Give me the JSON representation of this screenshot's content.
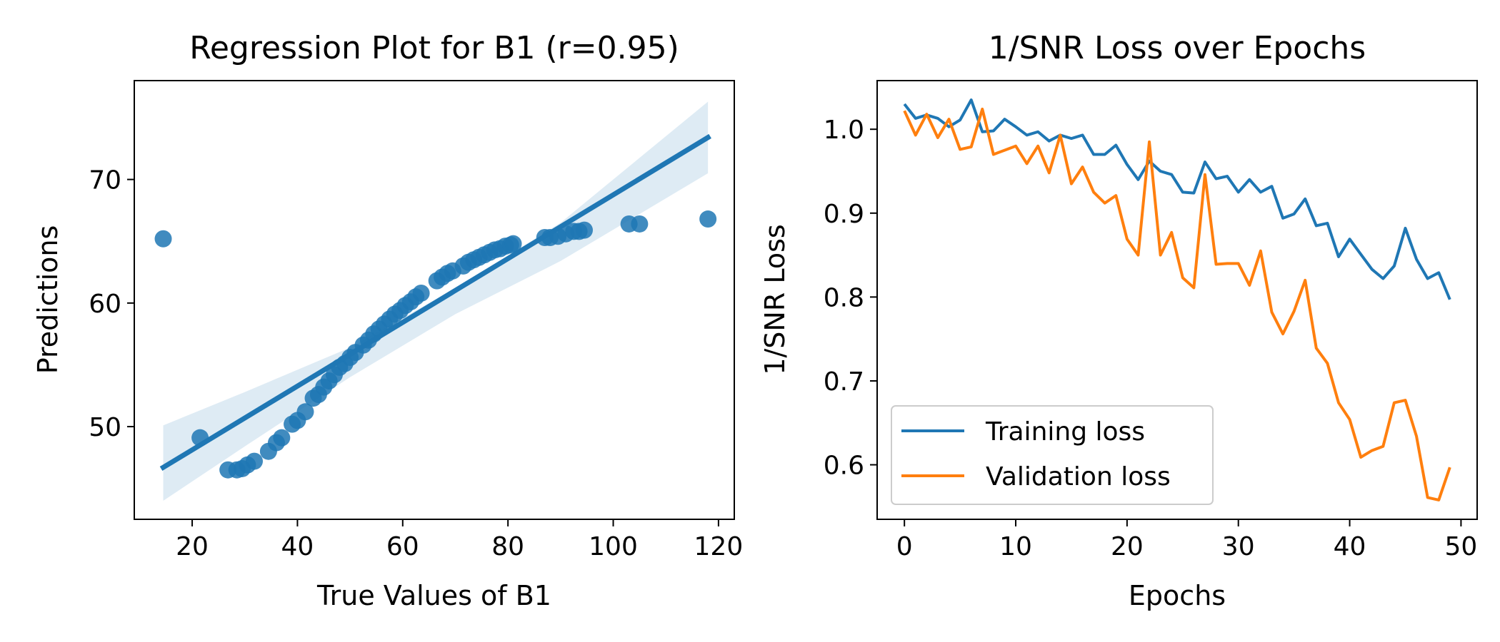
{
  "chart_data": [
    {
      "type": "scatter",
      "title": "Regression Plot for B1 (r=0.95)",
      "xlabel": "True Values of B1",
      "ylabel": "Predictions",
      "xlim": [
        9,
        123
      ],
      "ylim": [
        42.5,
        78
      ],
      "xticks": [
        20,
        40,
        60,
        80,
        100,
        120
      ],
      "yticks": [
        50,
        60,
        70
      ],
      "color": "#1f77b4",
      "points": [
        [
          14.5,
          65.2
        ],
        [
          21.5,
          49.1
        ],
        [
          26.8,
          46.5
        ],
        [
          28.5,
          46.5
        ],
        [
          29.5,
          46.6
        ],
        [
          30.5,
          46.9
        ],
        [
          31.8,
          47.2
        ],
        [
          34.5,
          48.0
        ],
        [
          36.0,
          48.7
        ],
        [
          37.0,
          49.1
        ],
        [
          39.0,
          50.2
        ],
        [
          40.0,
          50.5
        ],
        [
          41.5,
          51.2
        ],
        [
          43.0,
          52.3
        ],
        [
          44.0,
          52.6
        ],
        [
          45.0,
          53.2
        ],
        [
          46.0,
          53.7
        ],
        [
          47.0,
          54.2
        ],
        [
          48.0,
          54.8
        ],
        [
          49.0,
          55.1
        ],
        [
          50.0,
          55.6
        ],
        [
          51.0,
          56.0
        ],
        [
          52.5,
          56.6
        ],
        [
          53.5,
          57.0
        ],
        [
          54.5,
          57.5
        ],
        [
          55.5,
          57.9
        ],
        [
          56.5,
          58.3
        ],
        [
          57.5,
          58.7
        ],
        [
          58.5,
          59.1
        ],
        [
          59.5,
          59.4
        ],
        [
          60.5,
          59.8
        ],
        [
          61.5,
          60.1
        ],
        [
          62.5,
          60.5
        ],
        [
          63.5,
          60.8
        ],
        [
          66.5,
          61.8
        ],
        [
          67.5,
          62.1
        ],
        [
          68.5,
          62.4
        ],
        [
          69.5,
          62.6
        ],
        [
          71.5,
          63.0
        ],
        [
          72.5,
          63.3
        ],
        [
          73.5,
          63.5
        ],
        [
          74.5,
          63.7
        ],
        [
          75.5,
          63.9
        ],
        [
          76.5,
          64.1
        ],
        [
          77.5,
          64.3
        ],
        [
          78.5,
          64.4
        ],
        [
          79.5,
          64.6
        ],
        [
          80.5,
          64.7
        ],
        [
          81.0,
          64.8
        ],
        [
          87.0,
          65.3
        ],
        [
          88.0,
          65.3
        ],
        [
          89.5,
          65.4
        ],
        [
          91.0,
          65.6
        ],
        [
          92.5,
          65.8
        ],
        [
          93.5,
          65.8
        ],
        [
          94.5,
          65.9
        ],
        [
          103.0,
          66.4
        ],
        [
          105.0,
          66.4
        ],
        [
          118.0,
          66.8
        ]
      ],
      "regression_line": {
        "x": [
          14.5,
          118
        ],
        "y": [
          46.7,
          73.4
        ]
      },
      "confidence_band": {
        "x": [
          14.5,
          30,
          50,
          70,
          90,
          118
        ],
        "lower": [
          44.0,
          48.4,
          54.0,
          59.1,
          63.4,
          70.5
        ],
        "upper": [
          50.1,
          52.8,
          56.4,
          61.2,
          66.5,
          76.3
        ]
      }
    },
    {
      "type": "line",
      "title": "1/SNR Loss over Epochs",
      "xlabel": "Epochs",
      "ylabel": "1/SNR Loss",
      "xlim": [
        -2.45,
        51.45
      ],
      "ylim": [
        0.535,
        1.058
      ],
      "xticks": [
        0,
        10,
        20,
        30,
        40,
        50
      ],
      "yticks": [
        0.6,
        0.7,
        0.8,
        0.9,
        1.0
      ],
      "yticklabels": [
        "0.6",
        "0.7",
        "0.8",
        "0.9",
        "1.0"
      ],
      "x": [
        0,
        1,
        2,
        3,
        4,
        5,
        6,
        7,
        8,
        9,
        10,
        11,
        12,
        13,
        14,
        15,
        16,
        17,
        18,
        19,
        20,
        21,
        22,
        23,
        24,
        25,
        26,
        27,
        28,
        29,
        30,
        31,
        32,
        33,
        34,
        35,
        36,
        37,
        38,
        39,
        40,
        41,
        42,
        43,
        44,
        45,
        46,
        47,
        48,
        49
      ],
      "series": [
        {
          "name": "Training loss",
          "color": "#1f77b4",
          "values": [
            1.03,
            1.013,
            1.017,
            1.013,
            1.003,
            1.011,
            1.035,
            0.997,
            0.998,
            1.012,
            1.003,
            0.993,
            0.997,
            0.986,
            0.993,
            0.989,
            0.993,
            0.97,
            0.97,
            0.981,
            0.958,
            0.94,
            0.962,
            0.95,
            0.946,
            0.925,
            0.924,
            0.961,
            0.941,
            0.944,
            0.925,
            0.94,
            0.925,
            0.932,
            0.894,
            0.899,
            0.917,
            0.885,
            0.888,
            0.848,
            0.869,
            0.851,
            0.833,
            0.822,
            0.837,
            0.882,
            0.845,
            0.822,
            0.829,
            0.797
          ]
        },
        {
          "name": "Validation loss",
          "color": "#ff7f0e",
          "values": [
            1.022,
            0.993,
            1.018,
            0.99,
            1.012,
            0.976,
            0.979,
            1.024,
            0.97,
            0.975,
            0.98,
            0.959,
            0.98,
            0.948,
            0.993,
            0.935,
            0.955,
            0.925,
            0.912,
            0.921,
            0.869,
            0.85,
            0.985,
            0.85,
            0.877,
            0.823,
            0.811,
            0.946,
            0.839,
            0.84,
            0.84,
            0.814,
            0.855,
            0.782,
            0.756,
            0.783,
            0.82,
            0.739,
            0.721,
            0.674,
            0.654,
            0.609,
            0.617,
            0.622,
            0.674,
            0.677,
            0.634,
            0.561,
            0.558,
            0.597
          ]
        }
      ],
      "legend": {
        "location": "lower-left",
        "entries": [
          "Training loss",
          "Validation loss"
        ]
      }
    }
  ]
}
